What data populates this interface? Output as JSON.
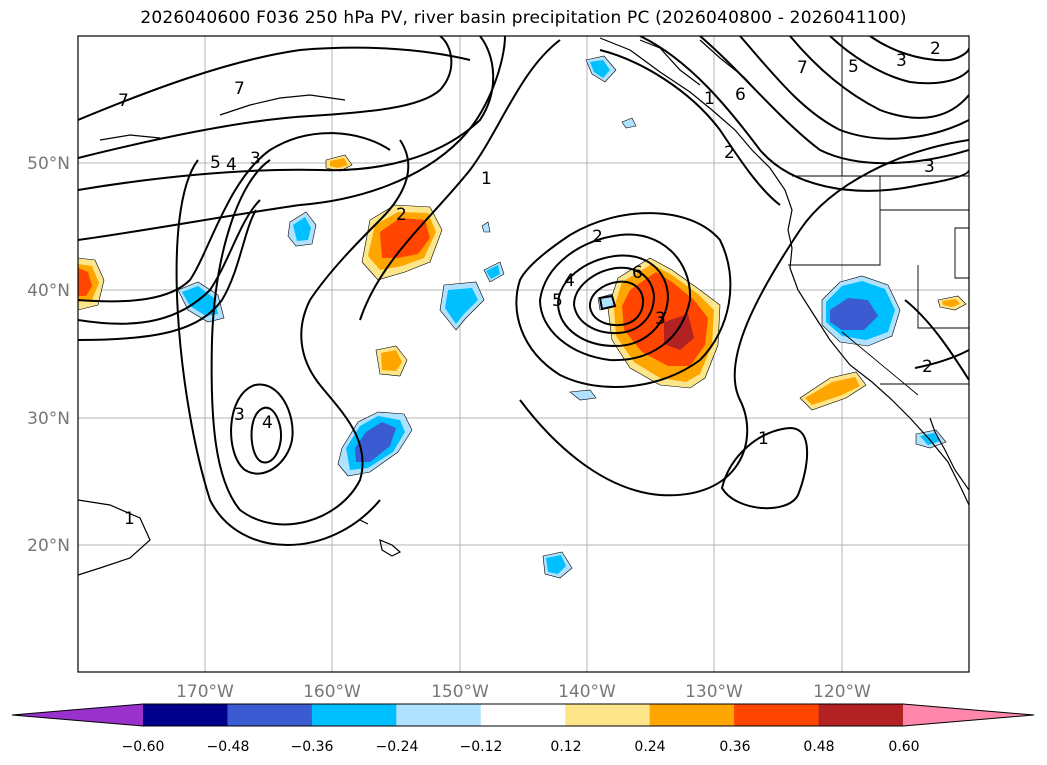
{
  "title": "2026040600 F036 250 hPa PV, river basin precipitation PC (2026040800 - 2026041100)",
  "latitude_labels": [
    "50°N",
    "40°N",
    "30°N",
    "20°N"
  ],
  "longitude_labels": [
    "170°W",
    "160°W",
    "150°W",
    "140°W",
    "130°W",
    "120°W"
  ],
  "pv_contour_labels": [
    "7",
    "7",
    "5",
    "4",
    "3",
    "2",
    "1",
    "2",
    "3",
    "4",
    "5",
    "4",
    "6",
    "3",
    "1",
    "6",
    "7",
    "5",
    "3",
    "2",
    "3",
    "2",
    "1",
    "2",
    "1"
  ],
  "colorbar": {
    "ticks": [
      "−0.60",
      "−0.48",
      "−0.36",
      "−0.24",
      "−0.12",
      "0.12",
      "0.24",
      "0.36",
      "0.48",
      "0.60"
    ],
    "colors": [
      "#9932cc",
      "#00008b",
      "#3a5bd1",
      "#00bfff",
      "#b0e2ff",
      "#ffffff",
      "#fde68a",
      "#ffa500",
      "#ff4500",
      "#b22222",
      "#ff87ab"
    ]
  }
}
